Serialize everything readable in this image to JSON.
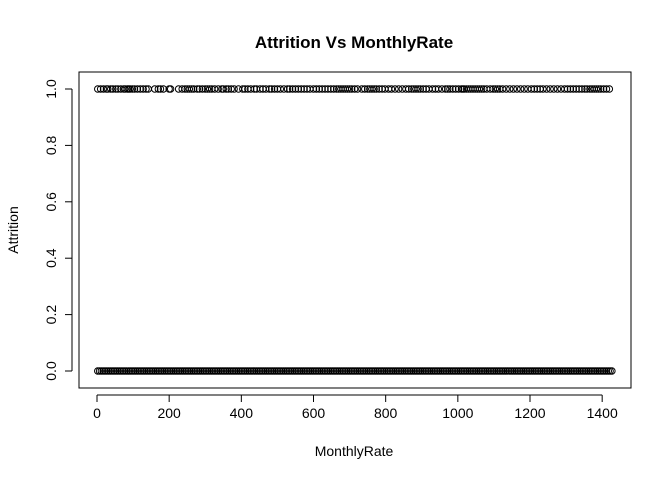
{
  "chart_data": {
    "type": "scatter",
    "title": "Attrition Vs MonthlyRate",
    "xlabel": "MonthlyRate",
    "ylabel": "Attrition",
    "xlim": [
      0,
      1430
    ],
    "ylim": [
      0,
      1
    ],
    "xticks": [
      0,
      200,
      400,
      600,
      800,
      1000,
      1200,
      1400
    ],
    "yticks": [
      0.0,
      0.2,
      0.4,
      0.6,
      0.8,
      1.0
    ],
    "xtick_labels": [
      "0",
      "200",
      "400",
      "600",
      "800",
      "1000",
      "1200",
      "1400"
    ],
    "ytick_labels": [
      "0.0",
      "0.2",
      "0.4",
      "0.6",
      "0.8",
      "1.0"
    ],
    "grid": false,
    "legend": "none",
    "series": [
      {
        "y": 0,
        "x_from": 2,
        "x_to": 1427,
        "x_step": 5
      },
      {
        "y": 1,
        "x": [
          2,
          10,
          18,
          26,
          30,
          38,
          44,
          52,
          58,
          66,
          74,
          78,
          84,
          88,
          92,
          98,
          104,
          112,
          120,
          128,
          136,
          142,
          160,
          170,
          176,
          184,
          200,
          204,
          226,
          236,
          244,
          250,
          256,
          262,
          268,
          278,
          284,
          292,
          300,
          306,
          312,
          318,
          326,
          336,
          346,
          350,
          358,
          364,
          372,
          380,
          392,
          404,
          410,
          418,
          426,
          436,
          442,
          452,
          460,
          468,
          478,
          484,
          492,
          500,
          508,
          518,
          528,
          534,
          542,
          550,
          558,
          566,
          574,
          582,
          590,
          600,
          608,
          616,
          624,
          632,
          640,
          648,
          656,
          664,
          670,
          676,
          682,
          688,
          694,
          700,
          706,
          714,
          722,
          734,
          742,
          750,
          756,
          762,
          768,
          774,
          782,
          790,
          798,
          808,
          816,
          826,
          836,
          846,
          856,
          864,
          872,
          878,
          884,
          890,
          896,
          904,
          912,
          920,
          930,
          938,
          946,
          956,
          966,
          972,
          978,
          986,
          994,
          1002,
          1010,
          1014,
          1018,
          1024,
          1030,
          1036,
          1042,
          1048,
          1054,
          1060,
          1066,
          1072,
          1080,
          1090,
          1098,
          1104,
          1110,
          1116,
          1124,
          1134,
          1144,
          1154,
          1164,
          1174,
          1184,
          1194,
          1204,
          1212,
          1220,
          1228,
          1236,
          1246,
          1256,
          1266,
          1276,
          1286,
          1296,
          1304,
          1312,
          1320,
          1328,
          1336,
          1344,
          1352,
          1358,
          1366,
          1372,
          1378,
          1384,
          1390,
          1396,
          1404,
          1412,
          1420
        ]
      }
    ]
  }
}
